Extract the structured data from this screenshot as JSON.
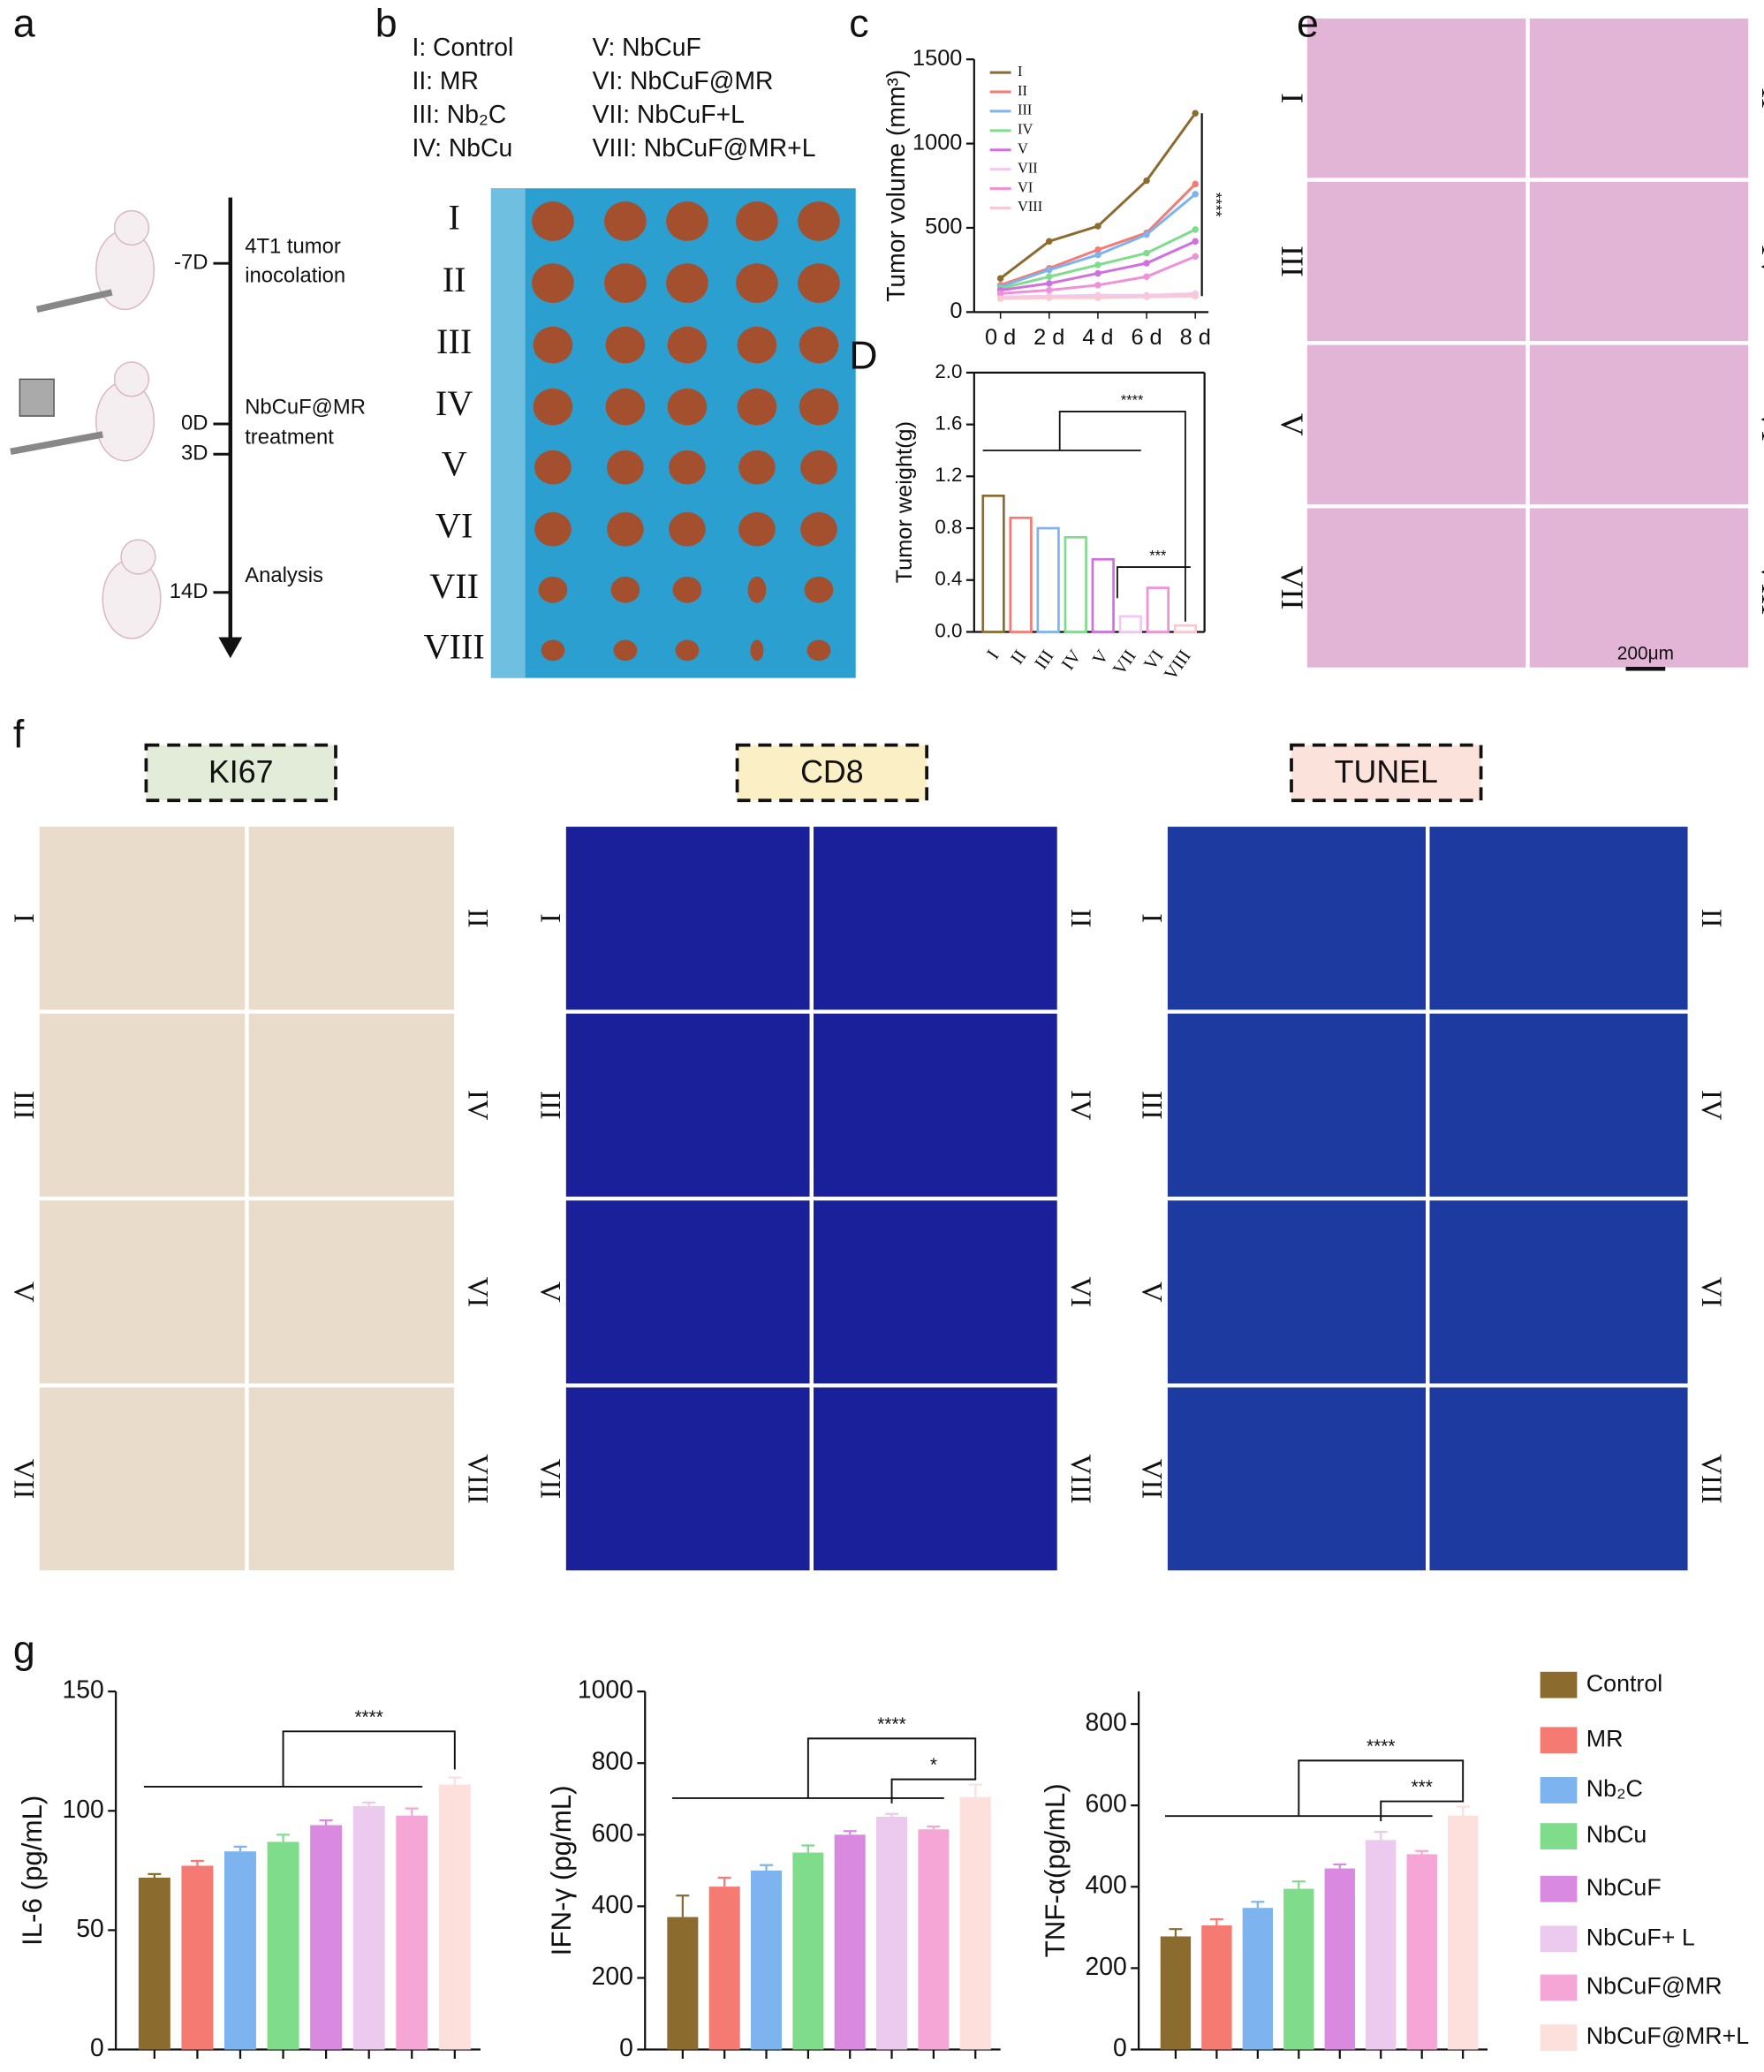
{
  "panel_labels": [
    "a",
    "b",
    "c",
    "D",
    "e",
    "f",
    "g"
  ],
  "timeline": [
    {
      "day": "-7D",
      "text": [
        "4T1 tumor",
        "inocolation"
      ]
    },
    {
      "day": "0D",
      "text": [
        "NbCuF@MR"
      ]
    },
    {
      "day": "3D",
      "text": [
        "treatment"
      ]
    },
    {
      "day": "14D",
      "text": [
        "Analysis"
      ]
    }
  ],
  "group_legend": [
    "I: Control",
    "II: MR",
    "III: Nb₂C",
    "IV: NbCu",
    "V: NbCuF",
    "VI: NbCuF@MR",
    "VII: NbCuF+L",
    "VIII: NbCuF@MR+L"
  ],
  "roman": [
    "I",
    "II",
    "III",
    "IV",
    "V",
    "VI",
    "VII",
    "VIII"
  ],
  "he_scale_bar": "200μm",
  "stain_titles": [
    "KI67",
    "CD8",
    "TUNEL"
  ],
  "treatment_legend": [
    {
      "name": "Control",
      "color": "#8b6b2e"
    },
    {
      "name": "MR",
      "color": "#f47a72"
    },
    {
      "name": "Nb₂C",
      "color": "#7db3ef"
    },
    {
      "name": "NbCu",
      "color": "#7fdc8a"
    },
    {
      "name": "NbCuF",
      "color": "#d98ae0"
    },
    {
      "name": "NbCuF+ L",
      "color": "#ecc9ef"
    },
    {
      "name": "NbCuF@MR",
      "color": "#f6a6d6"
    },
    {
      "name": "NbCuF@MR+L",
      "color": "#fde0dc"
    }
  ],
  "chart_data": [
    {
      "type": "line",
      "y_label": "Tumor volume (mm³)",
      "categories": [
        "0 d",
        "2 d",
        "4 d",
        "6 d",
        "8 d"
      ],
      "ylim": [
        0,
        1500
      ],
      "yticks": [
        0,
        500,
        1000,
        1500
      ],
      "annotations": [
        "****"
      ],
      "series": [
        {
          "name": "I",
          "color": "#8b6b2e",
          "values": [
            200,
            420,
            510,
            780,
            1180
          ]
        },
        {
          "name": "II",
          "color": "#f47a72",
          "values": [
            160,
            260,
            370,
            470,
            760
          ]
        },
        {
          "name": "III",
          "color": "#7db3ef",
          "values": [
            150,
            250,
            340,
            460,
            700
          ]
        },
        {
          "name": "IV",
          "color": "#7fdc8a",
          "values": [
            140,
            210,
            280,
            350,
            490
          ]
        },
        {
          "name": "V",
          "color": "#d070e0",
          "values": [
            130,
            170,
            230,
            290,
            420
          ]
        },
        {
          "name": "VII",
          "color": "#f0c8f0",
          "values": [
            90,
            95,
            100,
            100,
            110
          ]
        },
        {
          "name": "VI",
          "color": "#f090d8",
          "values": [
            110,
            130,
            160,
            210,
            330
          ]
        },
        {
          "name": "VIII",
          "color": "#fcc8d0",
          "values": [
            80,
            85,
            85,
            90,
            95
          ]
        }
      ]
    },
    {
      "type": "bar",
      "y_label": "Tumor weight(g)",
      "categories": [
        "I",
        "II",
        "III",
        "IV",
        "V",
        "VII",
        "VI",
        "VIII"
      ],
      "values": [
        1.05,
        0.88,
        0.8,
        0.73,
        0.56,
        0.12,
        0.34,
        0.05
      ],
      "colors": [
        "#8b6b2e",
        "#f47a72",
        "#7db3ef",
        "#7fdc8a",
        "#d070e0",
        "#f0c8f0",
        "#f090d8",
        "#fcc8d0"
      ],
      "ylim": [
        0,
        2.0
      ],
      "yticks": [
        {
          "value": 0,
          "label": "0.0"
        },
        {
          "value": 0.4,
          "label": "0.4"
        },
        {
          "value": 0.8,
          "label": "0.8"
        },
        {
          "value": 1.2,
          "label": "1.2"
        },
        {
          "value": 1.6,
          "label": "1.6"
        },
        {
          "value": 2.0,
          "label": "2.0"
        }
      ],
      "annotations": [
        "****",
        "***"
      ]
    },
    {
      "type": "bar",
      "y_label": "IL-6 (pg/mL)",
      "values": [
        72,
        77,
        83,
        87,
        94,
        102,
        98,
        111
      ],
      "errors": [
        1.5,
        2,
        2,
        3,
        2,
        1.5,
        3,
        3
      ],
      "ylim": [
        0,
        150
      ],
      "yticks": [
        0,
        50,
        100,
        150
      ],
      "annotations": [
        "****"
      ]
    },
    {
      "type": "bar",
      "y_label": "IFN-γ (pg/mL)",
      "values": [
        370,
        455,
        500,
        550,
        600,
        650,
        615,
        705
      ],
      "errors": [
        60,
        25,
        15,
        20,
        10,
        8,
        8,
        35
      ],
      "ylim": [
        0,
        1000
      ],
      "yticks": [
        0,
        200,
        400,
        600,
        800,
        1000
      ],
      "annotations": [
        "****",
        "*"
      ]
    },
    {
      "type": "bar",
      "y_label": "TNF-α(pg/mL)",
      "values": [
        278,
        305,
        348,
        395,
        445,
        515,
        480,
        575
      ],
      "errors": [
        18,
        15,
        15,
        18,
        10,
        20,
        8,
        22
      ],
      "ylim": [
        0,
        880
      ],
      "yticks": [
        0,
        200,
        400,
        600,
        800
      ],
      "annotations": [
        "****",
        "***"
      ]
    }
  ]
}
